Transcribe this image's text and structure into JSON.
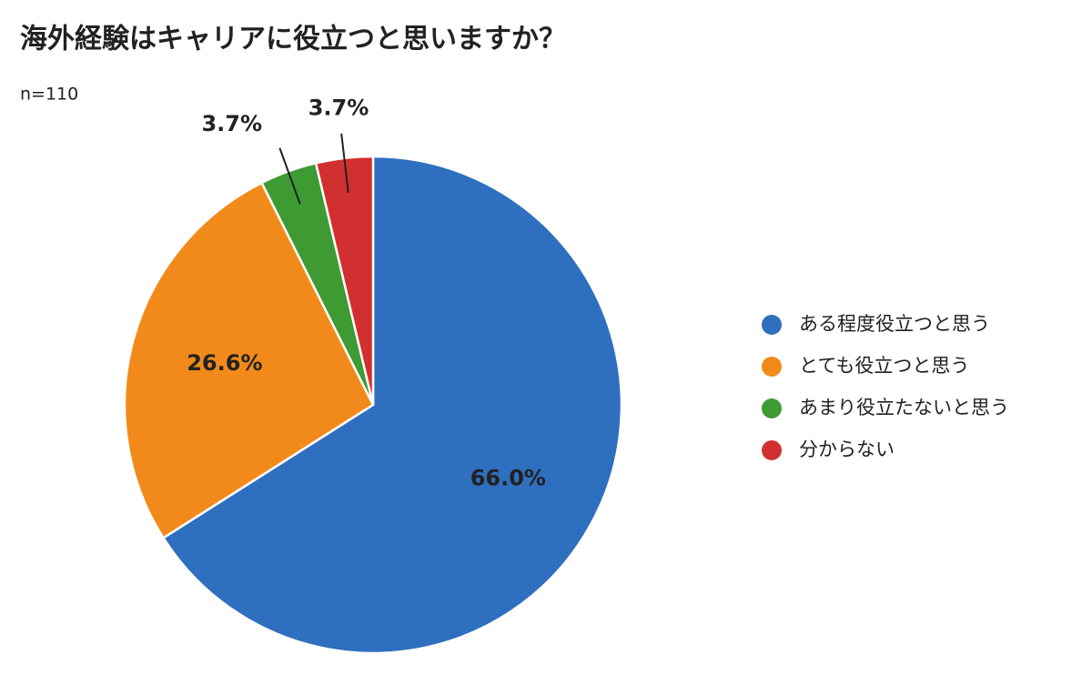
{
  "chart_data": {
    "type": "pie",
    "title": "海外経験はキャリアに役立つと思いますか？",
    "subtitle": "n=110",
    "categories": [
      "ある程度役立つと思う",
      "とても役立つと思う",
      "あまり役立たないと思う",
      "分からない"
    ],
    "values": [
      66.0,
      26.6,
      3.7,
      3.7
    ],
    "value_labels": [
      "66.0%",
      "26.6%",
      "3.7%",
      "3.7%"
    ],
    "colors": [
      "#2f6fbf",
      "#f28a1b",
      "#3e9a33",
      "#d23030"
    ]
  }
}
